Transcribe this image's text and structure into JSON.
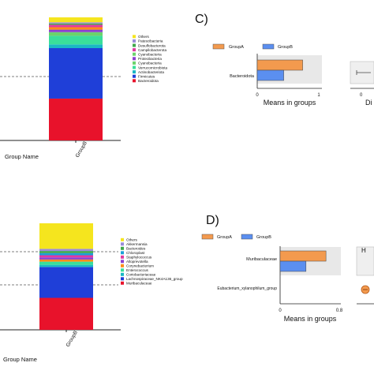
{
  "chart_data": [
    {
      "type": "bar",
      "subtype": "stacked-100",
      "categories": [
        "GroupB"
      ],
      "xlabel": "Group Name",
      "series": [
        {
          "name": "Bacteroidota",
          "color": "#e8122b",
          "values": [
            0.34
          ]
        },
        {
          "name": "Firmicutes",
          "color": "#1f3fd8",
          "values": [
            0.41
          ]
        },
        {
          "name": "Actinobacteriota",
          "color": "#1ab8c4",
          "values": [
            0.03
          ]
        },
        {
          "name": "Verrucomicrobiota",
          "color": "#3adf9a",
          "values": [
            0.07
          ]
        },
        {
          "name": "Cyanobacteria",
          "color": "#6bd36b",
          "values": [
            0.03
          ]
        },
        {
          "name": "Proteobacteria",
          "color": "#8c3fd0",
          "values": [
            0.02
          ]
        },
        {
          "name": "Cyanobacteria",
          "color": "#ff8c1a",
          "values": [
            0.02
          ]
        },
        {
          "name": "Campilobacterota",
          "color": "#e03aa0",
          "values": [
            0.02
          ]
        },
        {
          "name": "Desulfobacterota",
          "color": "#3fa84b",
          "values": [
            0.01
          ]
        },
        {
          "name": "Patescibacteria",
          "color": "#9a8cd8",
          "values": [
            0.01
          ]
        },
        {
          "name": "Others",
          "color": "#f5e51e",
          "values": [
            0.04
          ]
        }
      ],
      "legend_order": [
        "Others",
        "Patescibacteria",
        "Desulfobacterota",
        "Campilobacterota",
        "Cyanobacteria",
        "Proteobacteria",
        "Cyanobacteria",
        "Verrucomicrobiota",
        "Actinobacteriota",
        "Firmicutes",
        "Bacteroidota"
      ],
      "legend_placement": "right"
    },
    {
      "type": "bar",
      "orientation": "horizontal",
      "panel_label": "C)",
      "categories": [
        "Bacteroidota"
      ],
      "xlabel": "Means in groups",
      "xlim": [
        0,
        1
      ],
      "xticks": [
        "0",
        "1"
      ],
      "series": [
        {
          "name": "GroupA",
          "color": "#f39a4e",
          "values": [
            0.72
          ]
        },
        {
          "name": "GroupB",
          "color": "#5b8ff0",
          "values": [
            0.42
          ]
        }
      ],
      "legend_placement": "top"
    },
    {
      "type": "bar",
      "subtype": "stacked-100",
      "categories": [
        "GroupB"
      ],
      "xlabel": "Group Name",
      "series": [
        {
          "name": "Muribaculaceae",
          "color": "#e8122b",
          "values": [
            0.3
          ]
        },
        {
          "name": "Lachnospiraceae_NK4A136_group",
          "color": "#1f3fd8",
          "values": [
            0.29
          ]
        },
        {
          "name": "Coriobacteriaceae",
          "color": "#1ab8c4",
          "values": [
            0.02
          ]
        },
        {
          "name": "Enterococcus",
          "color": "#3adf9a",
          "values": [
            0.03
          ]
        },
        {
          "name": "Corynebacterium",
          "color": "#ff8c1a",
          "values": [
            0.02
          ]
        },
        {
          "name": "Alloprevotella",
          "color": "#8c3fd0",
          "values": [
            0.02
          ]
        },
        {
          "name": "Staphylococcus",
          "color": "#e03aa0",
          "values": [
            0.02
          ]
        },
        {
          "name": "Chloroplast",
          "color": "#1aa0d8",
          "values": [
            0.02
          ]
        },
        {
          "name": "Bacteroides",
          "color": "#3fa84b",
          "values": [
            0.02
          ]
        },
        {
          "name": "Akkermansia",
          "color": "#9a8cd8",
          "values": [
            0.02
          ]
        },
        {
          "name": "Others",
          "color": "#f5e51e",
          "values": [
            0.24
          ]
        }
      ],
      "legend_order": [
        "Others",
        "Akkermansia",
        "Bacteroides",
        "Chloroplast",
        "Staphylococcus",
        "Alloprevotella",
        "Corynebacterium",
        "Enterococcus",
        "Coriobacteriaceae",
        "Lachnospiraceae_NK4A136_group",
        "Muribaculaceae"
      ],
      "legend_placement": "right"
    },
    {
      "type": "bar",
      "orientation": "horizontal",
      "panel_label": "D)",
      "categories": [
        "Muribaculaceae",
        "Eubacterium_xylanophilum_group"
      ],
      "xlabel": "Means in groups",
      "xlim": [
        0,
        0.8
      ],
      "xticks": [
        "0",
        "0.8"
      ],
      "series": [
        {
          "name": "GroupA",
          "color": "#f39a4e",
          "values": [
            0.62,
            0.0
          ]
        },
        {
          "name": "GroupB",
          "color": "#5b8ff0",
          "values": [
            0.35,
            0.0
          ]
        }
      ],
      "legend_placement": "top"
    }
  ],
  "truncated": {
    "top_right_tick": "0",
    "top_right_label": "Di",
    "bottom_right_tick": "H"
  }
}
